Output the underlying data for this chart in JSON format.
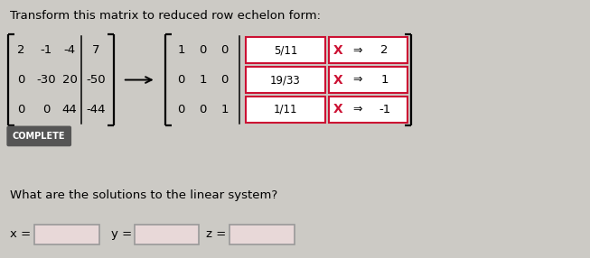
{
  "title": "Transform this matrix to reduced row echelon form:",
  "bg_color": "#cccac5",
  "matrix_left": [
    [
      "2",
      "-1",
      "-4",
      "7"
    ],
    [
      "0",
      "-30",
      "20",
      "-50"
    ],
    [
      "0",
      "0",
      "44",
      "-44"
    ]
  ],
  "matrix_right_identity": [
    [
      "1",
      "0",
      "0"
    ],
    [
      "0",
      "1",
      "0"
    ],
    [
      "0",
      "0",
      "1"
    ]
  ],
  "rref_col4": [
    "5/11",
    "19/33",
    "1/11"
  ],
  "rref_vals": [
    "2",
    "1",
    "-1"
  ],
  "complete_label": "COMPLETE",
  "complete_bg": "#555555",
  "complete_fg": "#ffffff",
  "question": "What are the solutions to the linear system?",
  "answer_labels": [
    "x =",
    "y =",
    "z ="
  ],
  "input_box_color": "#e8d8d8",
  "red_color": "#cc1133",
  "frac_box_border": "#cc1133",
  "x_box_border": "#cc1133",
  "ans_box_border": "#999999"
}
